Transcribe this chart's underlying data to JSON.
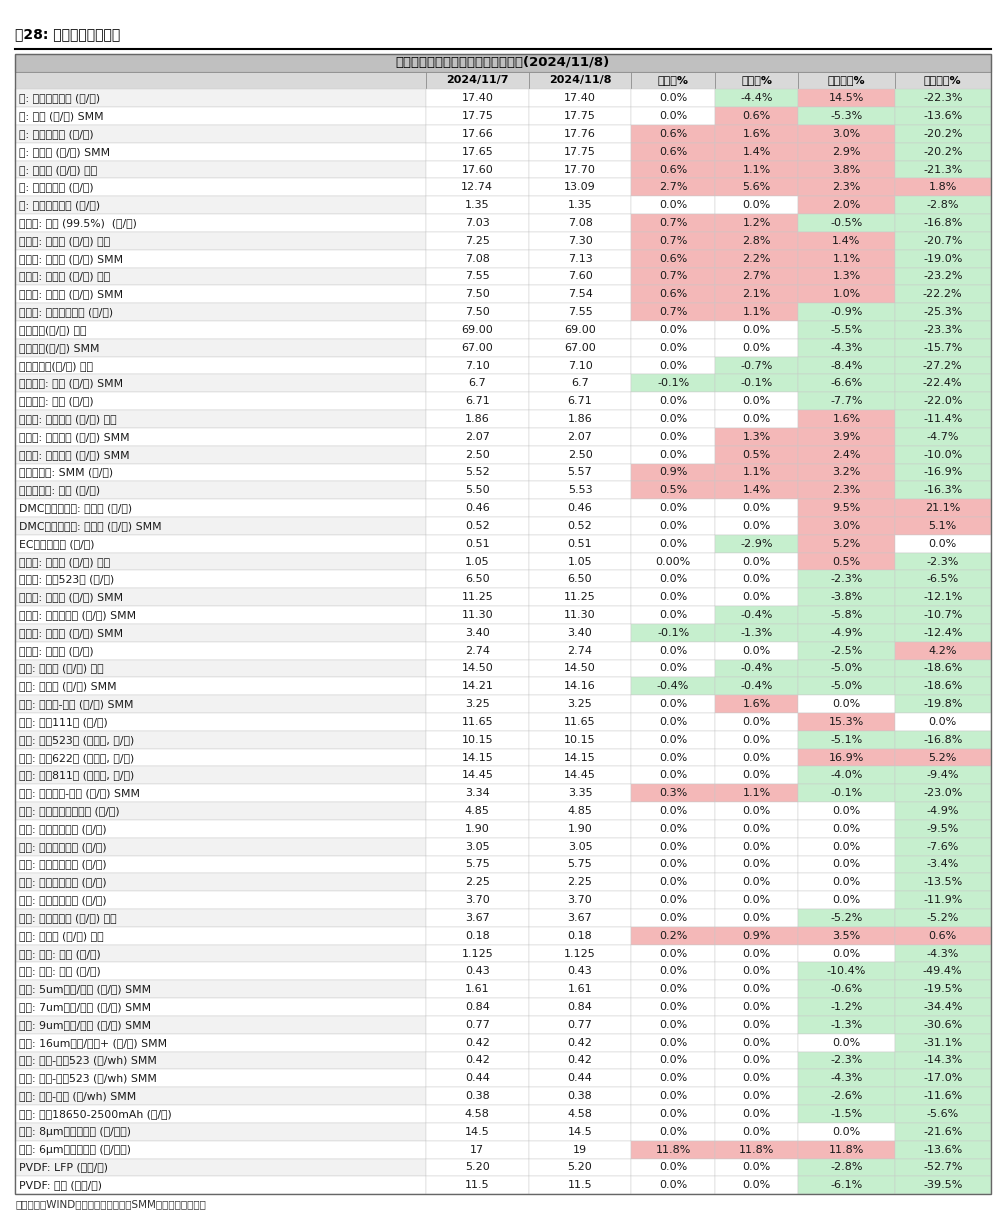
{
  "title": "》东吴电新》锂电材料价格每日涨跌(2024/11/8)",
  "fig_title": "图28: 锂电材料价格情况",
  "footer": "数据来源：WIND、鑫棹资讯、百川、SMM、东吴证券研究所",
  "headers": [
    "",
    "2024/11/7",
    "2024/11/8",
    "日环比%",
    "周环比%",
    "月初环比%",
    "年初环比%"
  ],
  "rows": [
    [
      "靴: 长江有色市场 (万/吨)",
      "17.40",
      "17.40",
      "0.0%",
      "-4.4%",
      "14.5%",
      "-22.3%"
    ],
    [
      "靴: 靴粉 (万/吨) SMM",
      "17.75",
      "17.75",
      "0.0%",
      "0.6%",
      "-5.3%",
      "-13.6%"
    ],
    [
      "靴: 金川赞比亚 (万/吨)",
      "17.66",
      "17.76",
      "0.6%",
      "1.6%",
      "3.0%",
      "-20.2%"
    ],
    [
      "靴: 电解靴 (万/吨) SMM",
      "17.65",
      "17.75",
      "0.6%",
      "1.4%",
      "2.9%",
      "-20.2%"
    ],
    [
      "靴: 金属靴 (万/吨) 百川",
      "17.60",
      "17.70",
      "0.6%",
      "1.1%",
      "3.8%",
      "-21.3%"
    ],
    [
      "镖: 上海金属网 (万/吨)",
      "12.74",
      "13.09",
      "2.7%",
      "5.6%",
      "2.3%",
      "1.8%"
    ],
    [
      "锰: 长江有色市场 (万/吨)",
      "1.35",
      "1.35",
      "0.0%",
      "0.0%",
      "2.0%",
      "-2.8%"
    ],
    [
      "碳酸锂: 国产 (99.5%)  (万/吨)",
      "7.03",
      "7.08",
      "0.7%",
      "1.2%",
      "-0.5%",
      "-16.8%"
    ],
    [
      "碳酸锂: 工业级 (万/吨) 百川",
      "7.25",
      "7.30",
      "0.7%",
      "2.8%",
      "1.4%",
      "-20.7%"
    ],
    [
      "碳酸锂: 工业级 (万/吨) SMM",
      "7.08",
      "7.13",
      "0.6%",
      "2.2%",
      "1.1%",
      "-19.0%"
    ],
    [
      "碳酸锂: 电池级 (万/吨) 百川",
      "7.55",
      "7.60",
      "0.7%",
      "2.7%",
      "1.3%",
      "-23.2%"
    ],
    [
      "碳酸锂: 电池级 (万/吨) SMM",
      "7.50",
      "7.54",
      "0.6%",
      "2.1%",
      "1.0%",
      "-22.2%"
    ],
    [
      "碳酸锂: 国产主流厂商 (万/吨)",
      "7.50",
      "7.55",
      "0.7%",
      "1.1%",
      "-0.9%",
      "-25.3%"
    ],
    [
      "金属锂：(万/吨) 百川",
      "69.00",
      "69.00",
      "0.0%",
      "0.0%",
      "-5.5%",
      "-23.3%"
    ],
    [
      "金属锂：(万/吨) SMM",
      "67.00",
      "67.00",
      "0.0%",
      "0.0%",
      "-4.3%",
      "-15.7%"
    ],
    [
      "氢氧化锂：(万/吨) 百川",
      "7.10",
      "7.10",
      "0.0%",
      "-0.7%",
      "-8.4%",
      "-27.2%"
    ],
    [
      "氢氧化锂: 国产 (万/吨) SMM",
      "6.7",
      "6.7",
      "-0.1%",
      "-0.1%",
      "-6.6%",
      "-22.4%"
    ],
    [
      "氢氧化锂: 国产 (万/吨)",
      "6.71",
      "6.71",
      "0.0%",
      "0.0%",
      "-7.7%",
      "-22.0%"
    ],
    [
      "电解液: 磷酸鐵锂 (万/吨) 百川",
      "1.86",
      "1.86",
      "0.0%",
      "0.0%",
      "1.6%",
      "-11.4%"
    ],
    [
      "电解液: 磷酸鐵锂 (万/吨) SMM",
      "2.07",
      "2.07",
      "0.0%",
      "1.3%",
      "3.9%",
      "-4.7%"
    ],
    [
      "电解液: 三元动力 (万/吨) SMM",
      "2.50",
      "2.50",
      "0.0%",
      "0.5%",
      "2.4%",
      "-10.0%"
    ],
    [
      "六氟磷酸锂: SMM (万/吨)",
      "5.52",
      "5.57",
      "0.9%",
      "1.1%",
      "3.2%",
      "-16.9%"
    ],
    [
      "六氟磷酸锂: 百川 (万/吨)",
      "5.50",
      "5.53",
      "0.5%",
      "1.4%",
      "2.3%",
      "-16.3%"
    ],
    [
      "DMC碳酸二甲酩: 工业级 (万/吨)",
      "0.46",
      "0.46",
      "0.0%",
      "0.0%",
      "9.5%",
      "21.1%"
    ],
    [
      "DMC碳酸二甲酩: 电池级 (万/吨) SMM",
      "0.52",
      "0.52",
      "0.0%",
      "0.0%",
      "3.0%",
      "5.1%"
    ],
    [
      "EC碳酸乙烯酯 (万/吨)",
      "0.51",
      "0.51",
      "0.0%",
      "-2.9%",
      "5.2%",
      "0.0%"
    ],
    [
      "前驱体: 磷酸鐵 (万/吨) 百川",
      "1.05",
      "1.05",
      "0.00%",
      "0.0%",
      "0.5%",
      "-2.3%"
    ],
    [
      "前驱体: 三元523型 (万/吨)",
      "6.50",
      "6.50",
      "0.0%",
      "0.0%",
      "-2.3%",
      "-6.5%"
    ],
    [
      "前驱体: 氧化靴 (万/吨) SMM",
      "11.25",
      "11.25",
      "0.0%",
      "0.0%",
      "-3.8%",
      "-12.1%"
    ],
    [
      "前驱体: 四氧化三靴 (万/吨) SMM",
      "11.30",
      "11.30",
      "0.0%",
      "-0.4%",
      "-5.8%",
      "-10.7%"
    ],
    [
      "前驱体: 氧化靴 (万/吨) SMM",
      "3.40",
      "3.40",
      "-0.1%",
      "-1.3%",
      "-4.9%",
      "-12.4%"
    ],
    [
      "前驱体: 硫酸镖 (万/吨)",
      "2.74",
      "2.74",
      "0.0%",
      "0.0%",
      "-2.5%",
      "4.2%"
    ],
    [
      "正极: 靴酸锂 (万/吨) 百川",
      "14.50",
      "14.50",
      "0.0%",
      "-0.4%",
      "-5.0%",
      "-18.6%"
    ],
    [
      "正极: 靴酸锂 (万/吨) SMM",
      "14.21",
      "14.16",
      "-0.4%",
      "-0.4%",
      "-5.0%",
      "-18.6%"
    ],
    [
      "正极: 锄酸锂-动力 (万/吨) SMM",
      "3.25",
      "3.25",
      "0.0%",
      "1.6%",
      "0.0%",
      "-19.8%"
    ],
    [
      "正极: 三元111型 (万/吨)",
      "11.65",
      "11.65",
      "0.0%",
      "0.0%",
      "15.3%",
      "0.0%"
    ],
    [
      "正极: 三元523型 (单晶型, 万/吨)",
      "10.15",
      "10.15",
      "0.0%",
      "0.0%",
      "-5.1%",
      "-16.8%"
    ],
    [
      "正极: 三元622型 (单晶型, 万/吨)",
      "14.15",
      "14.15",
      "0.0%",
      "0.0%",
      "16.9%",
      "5.2%"
    ],
    [
      "正极: 三元811型 (单晶型, 万/吨)",
      "14.45",
      "14.45",
      "0.0%",
      "0.0%",
      "-4.0%",
      "-9.4%"
    ],
    [
      "正极: 磷酸鐵锂-动力 (万/吨) SMM",
      "3.34",
      "3.35",
      "0.3%",
      "1.1%",
      "-0.1%",
      "-23.0%"
    ],
    [
      "负极: 人造石墨高端动力 (万/吨)",
      "4.85",
      "4.85",
      "0.0%",
      "0.0%",
      "0.0%",
      "-4.9%"
    ],
    [
      "负极: 人造石墨低端 (万/吨)",
      "1.90",
      "1.90",
      "0.0%",
      "0.0%",
      "0.0%",
      "-9.5%"
    ],
    [
      "负极: 人造石墨中端 (万/吨)",
      "3.05",
      "3.05",
      "0.0%",
      "0.0%",
      "0.0%",
      "-7.6%"
    ],
    [
      "负极: 天然石墨高端 (万/吨)",
      "5.75",
      "5.75",
      "0.0%",
      "0.0%",
      "0.0%",
      "-3.4%"
    ],
    [
      "负极: 天然石墨低端 (万/吨)",
      "2.25",
      "2.25",
      "0.0%",
      "0.0%",
      "0.0%",
      "-13.5%"
    ],
    [
      "负极: 天然石墨中端 (万/吨)",
      "3.70",
      "3.70",
      "0.0%",
      "0.0%",
      "0.0%",
      "-11.9%"
    ],
    [
      "负极: 碳负极材料 (万/吨) 百川",
      "3.67",
      "3.67",
      "0.0%",
      "0.0%",
      "-5.2%",
      "-5.2%"
    ],
    [
      "负极: 石油焦 (万/吨) 百川",
      "0.18",
      "0.18",
      "0.2%",
      "0.9%",
      "3.5%",
      "0.6%"
    ],
    [
      "隔膜: 湿法: 百川 (元/平)",
      "1.125",
      "1.125",
      "0.0%",
      "0.0%",
      "0.0%",
      "-4.3%"
    ],
    [
      "隔膜: 干法: 百川 (元/平)",
      "0.43",
      "0.43",
      "0.0%",
      "0.0%",
      "-10.4%",
      "-49.4%"
    ],
    [
      "隔膜: 5um湿法/国产 (元/平) SMM",
      "1.61",
      "1.61",
      "0.0%",
      "0.0%",
      "-0.6%",
      "-19.5%"
    ],
    [
      "隔膜: 7um湿法/国产 (元/平) SMM",
      "0.84",
      "0.84",
      "0.0%",
      "0.0%",
      "-1.2%",
      "-34.4%"
    ],
    [
      "隔膜: 9um湿法/国产 (元/平) SMM",
      "0.77",
      "0.77",
      "0.0%",
      "0.0%",
      "-1.3%",
      "-30.6%"
    ],
    [
      "隔膜: 16um干法/国产+ (元/平) SMM",
      "0.42",
      "0.42",
      "0.0%",
      "0.0%",
      "0.0%",
      "-31.1%"
    ],
    [
      "电池: 方形-三元523 (元/wh) SMM",
      "0.42",
      "0.42",
      "0.0%",
      "0.0%",
      "-2.3%",
      "-14.3%"
    ],
    [
      "电池: 软包-三元523 (元/wh) SMM",
      "0.44",
      "0.44",
      "0.0%",
      "0.0%",
      "-4.3%",
      "-17.0%"
    ],
    [
      "电池: 方形-鐵锂 (元/wh) SMM",
      "0.38",
      "0.38",
      "0.0%",
      "0.0%",
      "-2.6%",
      "-11.6%"
    ],
    [
      "电池: 圆柱18650-2500mAh (元/支)",
      "4.58",
      "4.58",
      "0.0%",
      "0.0%",
      "-1.5%",
      "-5.6%"
    ],
    [
      "锱箔: 8μm国产加工费 (元/公斤)",
      "14.5",
      "14.5",
      "0.0%",
      "0.0%",
      "0.0%",
      "-21.6%"
    ],
    [
      "锱箔: 6μm国产加工费 (元/公斤)",
      "17",
      "19",
      "11.8%",
      "11.8%",
      "11.8%",
      "-13.6%"
    ],
    [
      "PVDF: LFP (万元/吨)",
      "5.20",
      "5.20",
      "0.0%",
      "0.0%",
      "-2.8%",
      "-52.7%"
    ],
    [
      "PVDF: 三元 (万元/吨)",
      "11.5",
      "11.5",
      "0.0%",
      "0.0%",
      "-6.1%",
      "-39.5%"
    ]
  ],
  "col_widths_raw": [
    3.2,
    0.8,
    0.8,
    0.65,
    0.65,
    0.75,
    0.75
  ],
  "title_bg": "#c0c0c0",
  "header_bg": "#d9d9d9",
  "row_bg_even": "#f2f2f2",
  "row_bg_odd": "#ffffff",
  "red_bg": "#f4b8b8",
  "green_bg": "#c6efce",
  "border_color": "#a0a0a0",
  "text_color": "#1a1a1a"
}
